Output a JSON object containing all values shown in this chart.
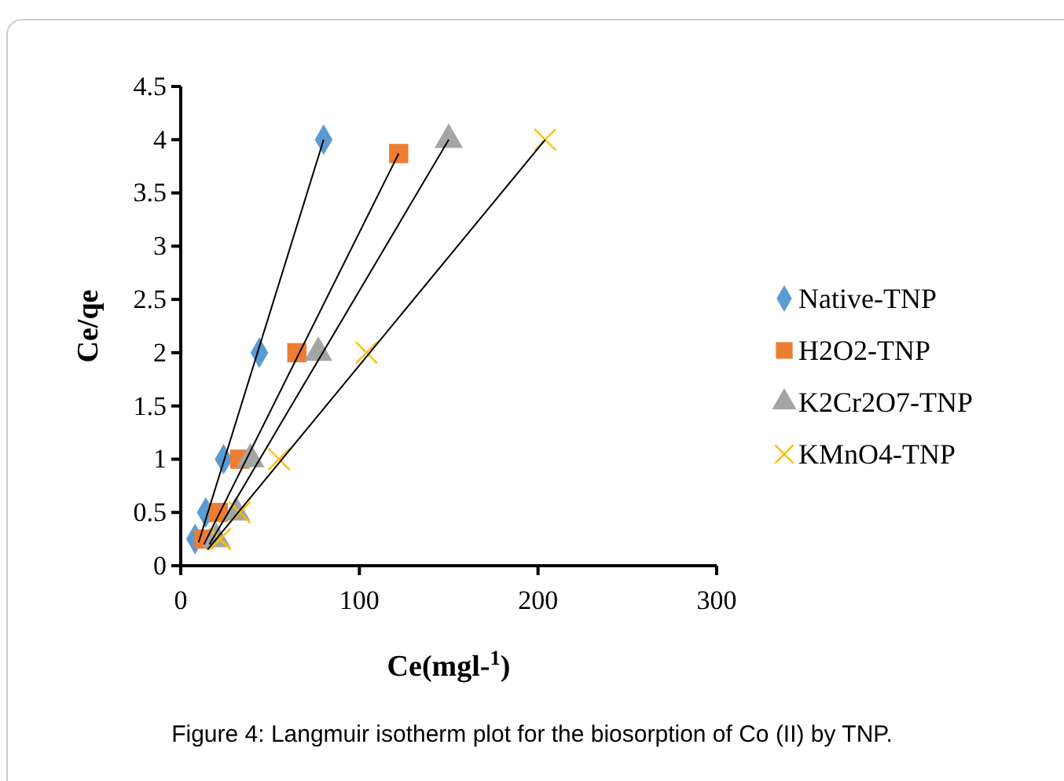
{
  "chart_data": {
    "type": "scatter",
    "xlabel": "Ce(mgl-$^{1}$)",
    "ylabel": "Ce/qe",
    "xlim": [
      0,
      300
    ],
    "xticks": [
      0,
      100,
      200,
      300
    ],
    "ylim": [
      0,
      4.5
    ],
    "yticks": [
      0,
      0.5,
      1,
      1.5,
      2,
      2.5,
      3,
      3.5,
      4,
      4.5
    ],
    "grid": false,
    "legend": "right",
    "annotations": [
      "Figure 4: Langmuir isotherm plot for the biosorption of Co (II) by TNP."
    ],
    "series": [
      {
        "name": "Native-TNP",
        "color": "#5b9bd5",
        "marker": "diamond",
        "x": [
          8,
          14,
          24,
          44,
          80
        ],
        "values": [
          0.25,
          0.5,
          1,
          2,
          4
        ]
      },
      {
        "name": "H2O2-TNP",
        "color": "#ed7d31",
        "marker": "square",
        "x": [
          13,
          21,
          33,
          65,
          122
        ],
        "values": [
          0.25,
          0.5,
          1,
          2,
          3.87
        ]
      },
      {
        "name": "K2Cr2O7-TNP",
        "color": "#a5a5a5",
        "marker": "triangle",
        "x": [
          20,
          31,
          39,
          77,
          150
        ],
        "values": [
          0.25,
          0.5,
          1,
          2,
          4
        ]
      },
      {
        "name": "KMnO4-TNP",
        "color": "#ffc000",
        "marker": "cross",
        "x": [
          22,
          33,
          55,
          104,
          204
        ],
        "values": [
          0.25,
          0.5,
          1,
          2,
          4
        ]
      },
      {
        "type": "line",
        "color": "#000000",
        "x": [
          10,
          80
        ],
        "values": [
          0.22,
          4
        ]
      },
      {
        "type": "line",
        "color": "#000000",
        "x": [
          13,
          122
        ],
        "values": [
          0.2,
          3.87
        ]
      },
      {
        "type": "line",
        "color": "#000000",
        "x": [
          16,
          150
        ],
        "values": [
          0.2,
          4
        ]
      },
      {
        "type": "line",
        "color": "#000000",
        "x": [
          15,
          204
        ],
        "values": [
          0.15,
          4
        ]
      }
    ]
  }
}
